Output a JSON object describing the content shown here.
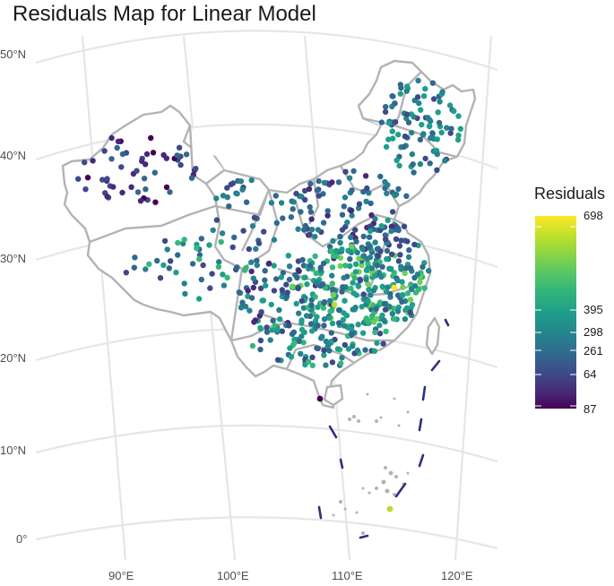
{
  "title": "Residuals Map for Linear Model",
  "axes": {
    "lat_labels": [
      "50°N",
      "40°N",
      "30°N",
      "20°N",
      "10°N",
      "0°"
    ],
    "lon_labels": [
      "90°E",
      "100°E",
      "110°E",
      "120°E"
    ]
  },
  "legend": {
    "title": "Residuals",
    "ticks": [
      "698",
      "395",
      "298",
      "261",
      "64",
      "87"
    ],
    "colors": [
      "#fde725",
      "#b5de2b",
      "#6ece58",
      "#35b779",
      "#1f9e89",
      "#26828e",
      "#31688e",
      "#3e4989",
      "#482878",
      "#440154"
    ]
  },
  "colors": {
    "boundary": "#b3b3b3",
    "graticule": "#e6e6e6",
    "nine_dash_line": "#2c2f7f"
  }
}
